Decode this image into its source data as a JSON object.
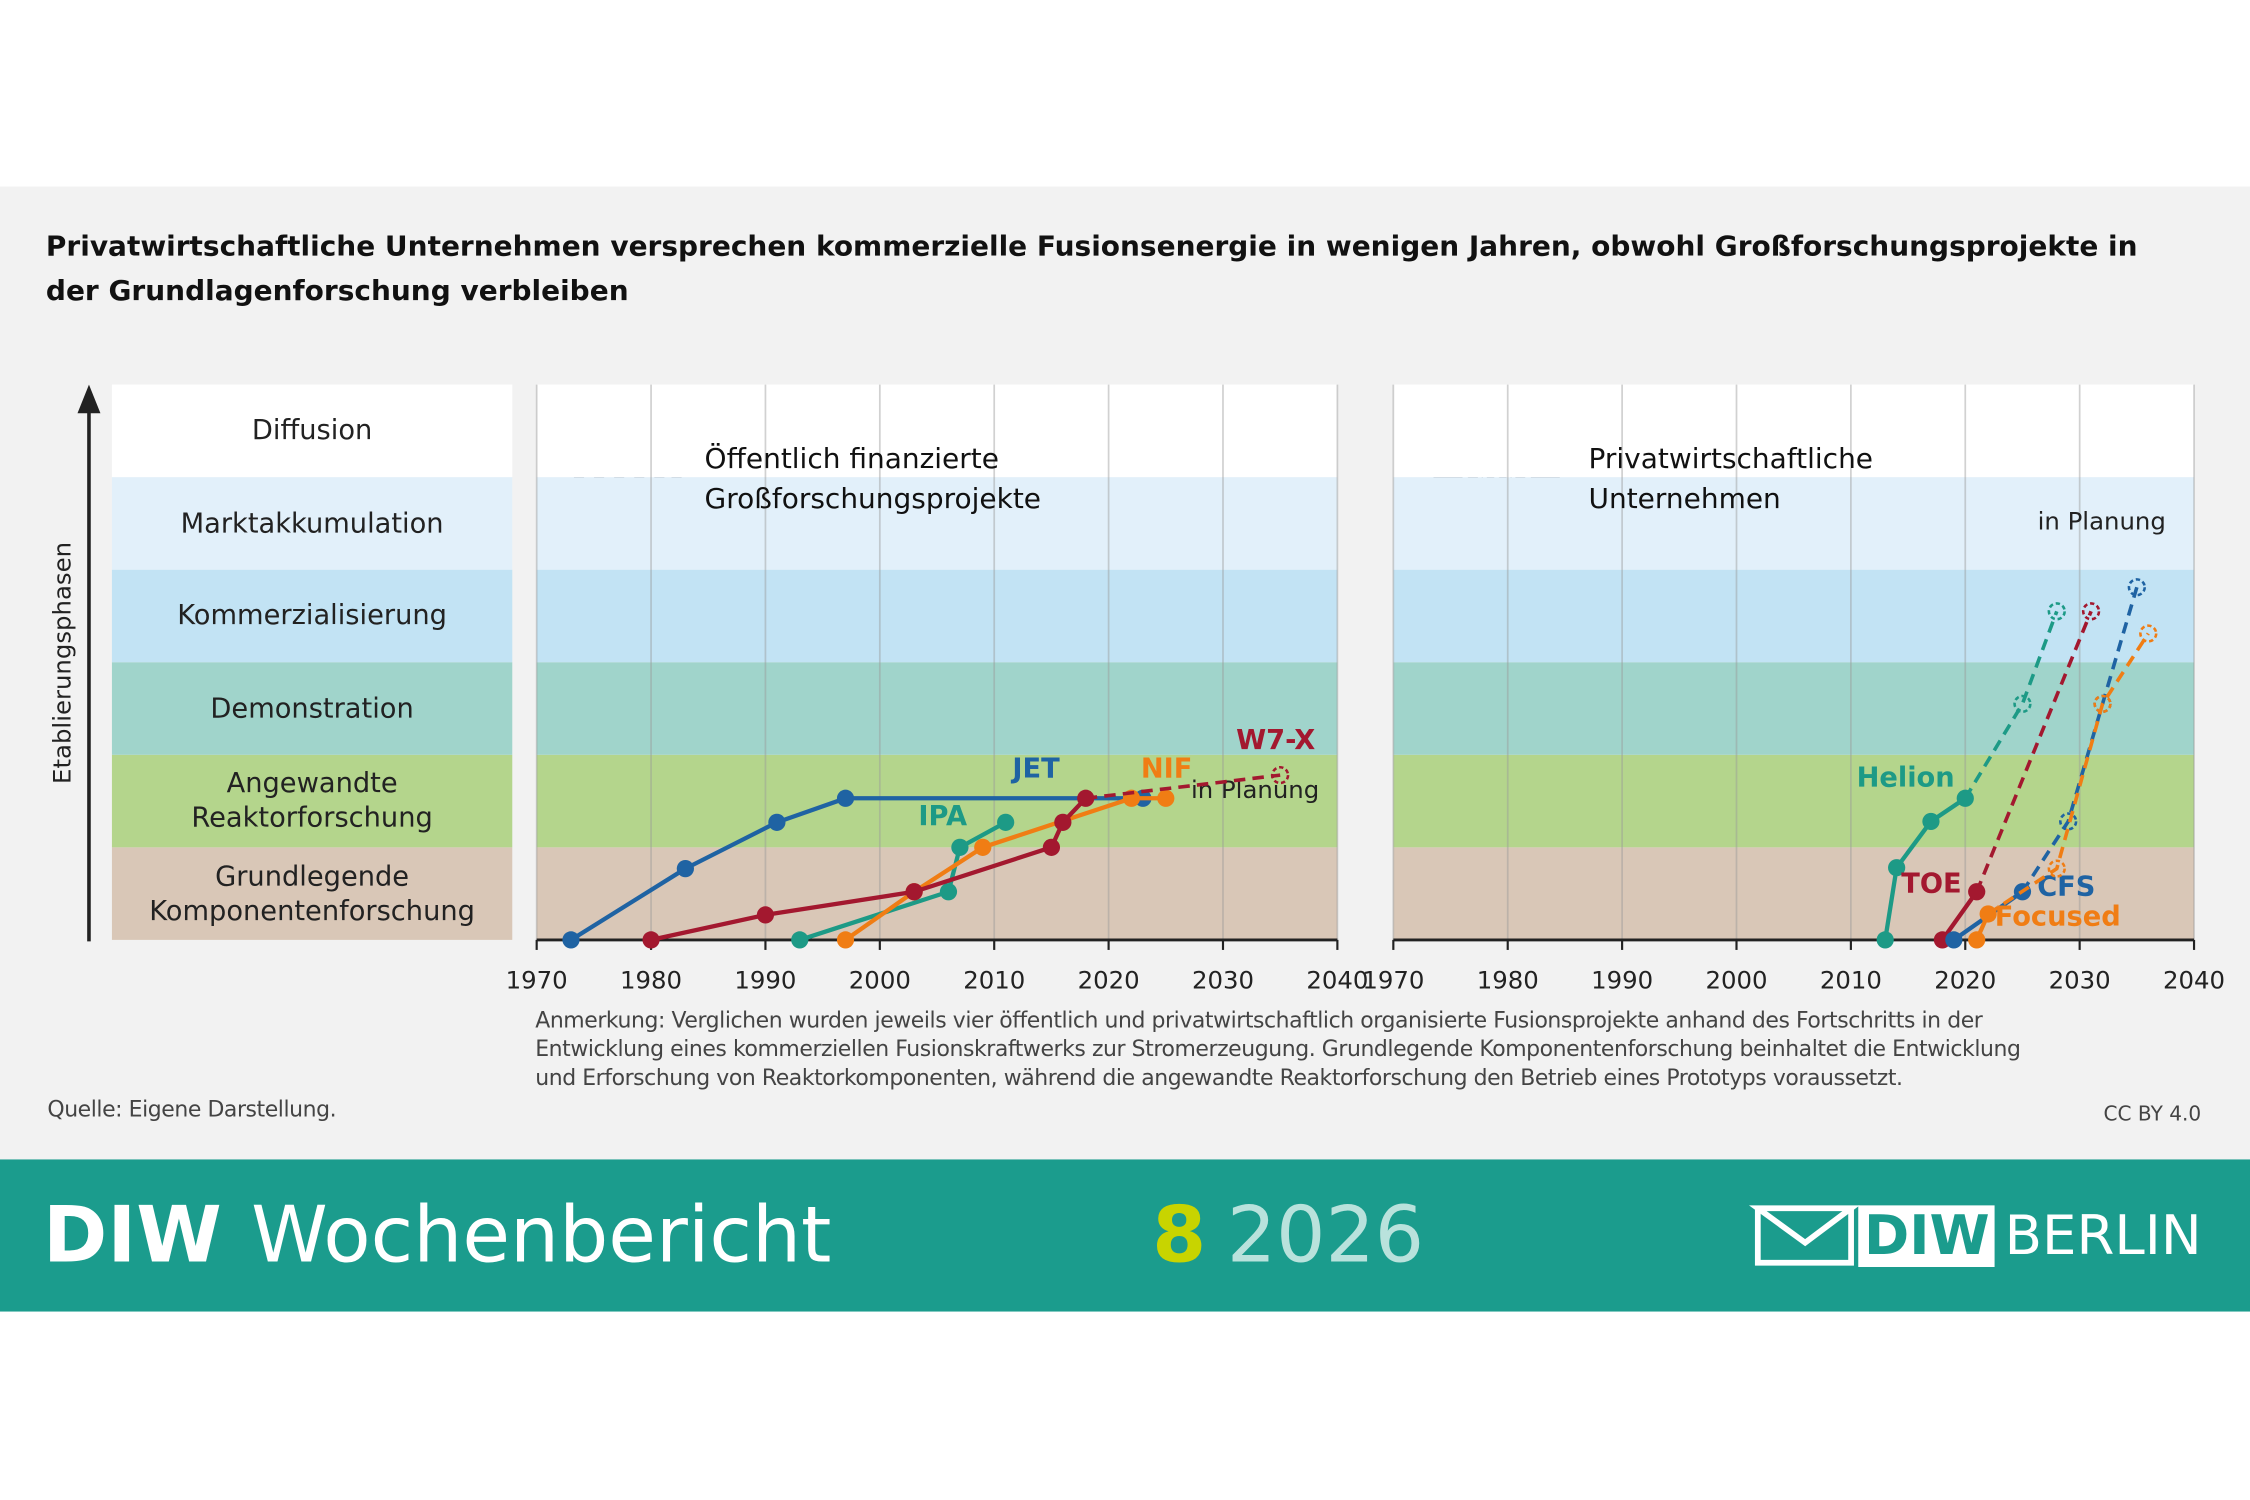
{
  "title": "Privatwirtschaftliche Unternehmen versprechen kommerzielle Fusionsenergie in wenigen Jahren, obwohl Großforschungsprojekte in der Grundlagenforschung verbleiben",
  "y_axis_label": "Etablierungsphasen",
  "stages": [
    "Grundlegende Komponentenforschung",
    "Angewandte Reaktorforschung",
    "Demonstration",
    "Kommerzialisierung",
    "Marktakkumulation",
    "Diffusion"
  ],
  "stage_colors": [
    "#d9c7b7",
    "#b4d58c",
    "#a0d4cb",
    "#c2e3f4",
    "#e2f0fa",
    "#ffffff"
  ],
  "note": "Anmerkung: Verglichen wurden jeweils vier öffentlich und privatwirtschaftlich organisierte Fusionsprojekte anhand des Fortschritts in der Entwicklung eines kommerziellen Fusionskraftwerks zur Stromerzeugung. Grundlegende Komponentenforschung beinhaltet die Entwicklung und Erforschung von Reaktorkomponenten, während die angewandte Reaktorforschung den Betrieb eines Prototyps voraussetzt.",
  "source": "Quelle: Eigene Darstellung.",
  "license": "CC BY 4.0",
  "footer": {
    "publication_brand": "DIW",
    "publication": "Wochenbericht",
    "issue": "8",
    "year": "2026",
    "publisher_brand": "DIW",
    "publisher_city": "BERLIN"
  },
  "chart_data": [
    {
      "type": "line",
      "title": "Öffentlich finanzierte Großforschungsprojekte",
      "annotation": "in Planung",
      "xlim": [
        1970,
        2040
      ],
      "xticks": [
        1970,
        1980,
        1990,
        2000,
        2010,
        2020,
        2030,
        2040
      ],
      "ylim": [
        0,
        6
      ],
      "grid": true,
      "series": [
        {
          "name": "JET",
          "color": "#1f63a3",
          "x": [
            1973,
            1983,
            1991,
            1997,
            2023
          ],
          "values": [
            0,
            0.77,
            1.27,
            1.53,
            1.53
          ],
          "planned": [
            false,
            false,
            false,
            false,
            false
          ]
        },
        {
          "name": "IPA",
          "color": "#1d9a86",
          "x": [
            1993,
            2006,
            2007,
            2011
          ],
          "values": [
            0,
            0.52,
            1.0,
            1.27
          ],
          "planned": [
            false,
            false,
            false,
            false
          ]
        },
        {
          "name": "NIF",
          "color": "#f07d14",
          "x": [
            1997,
            2003,
            2009,
            2022,
            2025
          ],
          "values": [
            0,
            0.52,
            1.0,
            1.53,
            1.53
          ],
          "planned": [
            false,
            false,
            false,
            false,
            false
          ]
        },
        {
          "name": "W7-X",
          "color": "#a3182f",
          "x": [
            1980,
            1990,
            2003,
            2015,
            2016,
            2018,
            2035
          ],
          "values": [
            0,
            0.27,
            0.52,
            1.0,
            1.27,
            1.53,
            1.78
          ],
          "planned": [
            false,
            false,
            false,
            false,
            false,
            false,
            true
          ]
        }
      ]
    },
    {
      "type": "line",
      "title": "Privatwirtschaftliche Unternehmen",
      "annotation": "in Planung",
      "xlim": [
        1970,
        2040
      ],
      "xticks": [
        1970,
        1980,
        1990,
        2000,
        2010,
        2020,
        2030,
        2040
      ],
      "ylim": [
        0,
        6
      ],
      "grid": true,
      "series": [
        {
          "name": "Helion",
          "color": "#1d9a86",
          "x": [
            2013,
            2014,
            2017,
            2020,
            2025,
            2028
          ],
          "values": [
            0,
            0.78,
            1.28,
            1.53,
            2.55,
            3.55
          ],
          "planned": [
            false,
            false,
            false,
            false,
            true,
            true
          ]
        },
        {
          "name": "TOE",
          "color": "#a3182f",
          "x": [
            2018,
            2021,
            2031
          ],
          "values": [
            0,
            0.52,
            3.55
          ],
          "planned": [
            false,
            false,
            true
          ]
        },
        {
          "name": "CFS",
          "color": "#1f63a3",
          "x": [
            2019,
            2025,
            2029,
            2032,
            2035
          ],
          "values": [
            0,
            0.52,
            1.28,
            2.55,
            3.81
          ],
          "planned": [
            false,
            false,
            true,
            true,
            true
          ]
        },
        {
          "name": "Focused",
          "color": "#f07d14",
          "x": [
            2021,
            2022,
            2028,
            2032,
            2036
          ],
          "values": [
            0,
            0.28,
            0.77,
            2.55,
            3.31
          ],
          "planned": [
            false,
            false,
            true,
            true,
            true
          ]
        }
      ]
    }
  ]
}
